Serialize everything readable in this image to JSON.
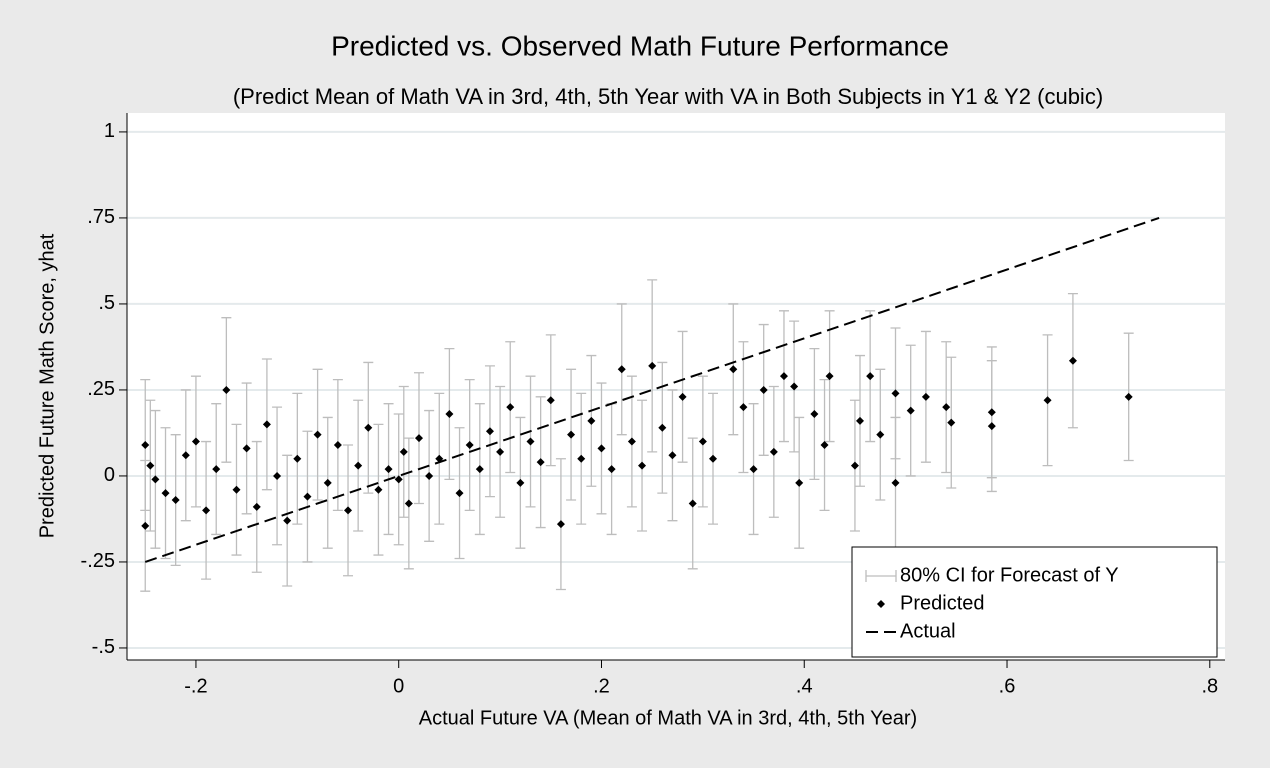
{
  "chart_data": {
    "type": "scatter",
    "title": "Predicted vs. Observed Math Future Performance",
    "subtitle": "(Predict Mean of Math VA in 3rd, 4th, 5th Year with VA in Both Subjects in Y1 & Y2 (cubic)",
    "x_label": "Actual Future VA (Mean of Math VA in 3rd, 4th, 5th Year)",
    "y_label": "Predicted Future Math Score, yhat",
    "xlim": [
      -0.268,
      0.815
    ],
    "ylim": [
      -0.535,
      1.055
    ],
    "xticks": [
      {
        "value": -0.2,
        "label": "-.2"
      },
      0,
      {
        "value": 0.2,
        "label": ".2"
      },
      {
        "value": 0.4,
        "label": ".4"
      },
      {
        "value": 0.6,
        "label": ".6"
      },
      {
        "value": 0.8,
        "label": ".8"
      }
    ],
    "yticks": [
      {
        "value": -0.5,
        "label": "-.5"
      },
      {
        "value": -0.25,
        "label": "-.25"
      },
      0,
      {
        "value": 0.25,
        "label": ".25"
      },
      {
        "value": 0.5,
        "label": ".5"
      },
      {
        "value": 0.75,
        "label": ".75"
      },
      1
    ],
    "grid": true,
    "legend": "bottom-right",
    "series": [
      {
        "name": "Predicted",
        "error_name": "80% CI for Forecast of Y",
        "color": "#000000",
        "error_color": "#bdbdbd",
        "x": [
          -0.25,
          -0.25,
          -0.245,
          -0.24,
          -0.23,
          -0.22,
          -0.21,
          -0.2,
          -0.19,
          -0.18,
          -0.17,
          -0.16,
          -0.15,
          -0.14,
          -0.13,
          -0.12,
          -0.11,
          -0.1,
          -0.09,
          -0.08,
          -0.07,
          -0.06,
          -0.05,
          -0.04,
          -0.03,
          -0.02,
          -0.01,
          0.0,
          0.005,
          0.01,
          0.02,
          0.03,
          0.04,
          0.05,
          0.06,
          0.07,
          0.08,
          0.09,
          0.1,
          0.11,
          0.12,
          0.13,
          0.14,
          0.15,
          0.16,
          0.17,
          0.18,
          0.19,
          0.2,
          0.21,
          0.22,
          0.23,
          0.24,
          0.25,
          0.26,
          0.27,
          0.28,
          0.29,
          0.3,
          0.31,
          0.33,
          0.34,
          0.35,
          0.36,
          0.37,
          0.38,
          0.39,
          0.395,
          0.41,
          0.42,
          0.425,
          0.45,
          0.455,
          0.465,
          0.475,
          0.49,
          0.49,
          0.505,
          0.52,
          0.54,
          0.545,
          0.585,
          0.585,
          0.64,
          0.665,
          0.72
        ],
        "values": [
          0.09,
          -0.145,
          0.03,
          -0.01,
          -0.05,
          -0.07,
          0.06,
          0.1,
          -0.1,
          0.02,
          0.25,
          -0.04,
          0.08,
          -0.09,
          0.15,
          0.0,
          -0.13,
          0.05,
          -0.06,
          0.12,
          -0.02,
          0.09,
          -0.1,
          0.03,
          0.14,
          -0.04,
          0.02,
          -0.01,
          0.07,
          -0.08,
          0.11,
          0.0,
          0.05,
          0.18,
          -0.05,
          0.09,
          0.02,
          0.13,
          0.07,
          0.2,
          -0.02,
          0.1,
          0.04,
          0.22,
          -0.14,
          0.12,
          0.05,
          0.16,
          0.08,
          0.02,
          0.31,
          0.1,
          0.03,
          0.32,
          0.14,
          0.06,
          0.23,
          -0.08,
          0.1,
          0.05,
          0.31,
          0.2,
          0.02,
          0.25,
          0.07,
          0.29,
          0.26,
          -0.02,
          0.18,
          0.09,
          0.29,
          0.03,
          0.16,
          0.29,
          0.12,
          -0.02,
          0.24,
          0.19,
          0.23,
          0.2,
          0.155,
          0.185,
          0.145,
          0.22,
          0.335,
          0.23
        ],
        "errors": [
          0.19,
          0.19,
          0.19,
          0.2,
          0.19,
          0.19,
          0.19,
          0.19,
          0.2,
          0.19,
          0.21,
          0.19,
          0.19,
          0.19,
          0.19,
          0.2,
          0.19,
          0.19,
          0.19,
          0.19,
          0.19,
          0.19,
          0.19,
          0.19,
          0.19,
          0.19,
          0.19,
          0.19,
          0.19,
          0.19,
          0.19,
          0.19,
          0.19,
          0.19,
          0.19,
          0.19,
          0.19,
          0.19,
          0.19,
          0.19,
          0.19,
          0.19,
          0.19,
          0.19,
          0.19,
          0.19,
          0.19,
          0.19,
          0.19,
          0.19,
          0.19,
          0.19,
          0.19,
          0.25,
          0.19,
          0.19,
          0.19,
          0.19,
          0.19,
          0.19,
          0.19,
          0.19,
          0.19,
          0.19,
          0.19,
          0.19,
          0.19,
          0.19,
          0.19,
          0.19,
          0.19,
          0.19,
          0.19,
          0.19,
          0.19,
          0.19,
          0.19,
          0.19,
          0.19,
          0.19,
          0.19,
          0.19,
          0.19,
          0.19,
          0.195,
          0.185
        ]
      },
      {
        "name": "Actual",
        "color": "#000000",
        "dashed": true,
        "x": [
          -0.25,
          0.75
        ],
        "values": [
          -0.25,
          0.75
        ]
      }
    ]
  }
}
